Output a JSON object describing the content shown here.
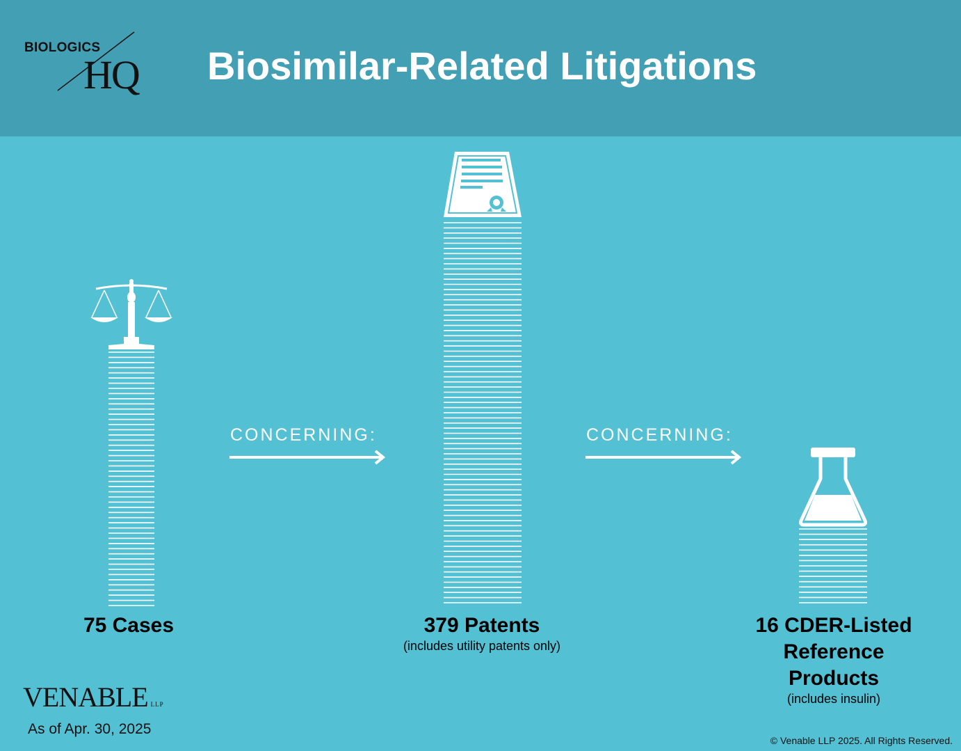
{
  "header": {
    "logo_top": "BIOLOGICS",
    "logo_bottom": "HQ",
    "title": "Biosimilar-Related Litigations"
  },
  "columns": [
    {
      "label": "75 Cases",
      "note": "",
      "icon": "scales-of-justice-icon"
    },
    {
      "label": "379 Patents",
      "note": "(includes utility patents only)",
      "icon": "patent-certificate-icon"
    },
    {
      "label": "16 CDER-Listed Reference Products",
      "note": "(includes insulin)",
      "icon": "flask-icon"
    }
  ],
  "connectors": [
    "CONCERNING:",
    "CONCERNING:"
  ],
  "footer": {
    "brand": "VENABLE",
    "brand_suffix": "LLP",
    "as_of": "As of Apr. 30, 2025",
    "copyright": "© Venable LLP 2025. All Rights Reserved."
  },
  "chart_data": {
    "type": "bar",
    "title": "Biosimilar-Related Litigations",
    "categories": [
      "Cases",
      "Patents",
      "CDER-Listed Reference Products"
    ],
    "values": [
      75,
      379,
      16
    ],
    "series": [
      {
        "values": [
          75,
          379,
          16
        ]
      }
    ]
  },
  "colors": {
    "background": "#53c0d3",
    "header": "#43a0b4",
    "marks": "#ffffff",
    "text": "#000000"
  }
}
